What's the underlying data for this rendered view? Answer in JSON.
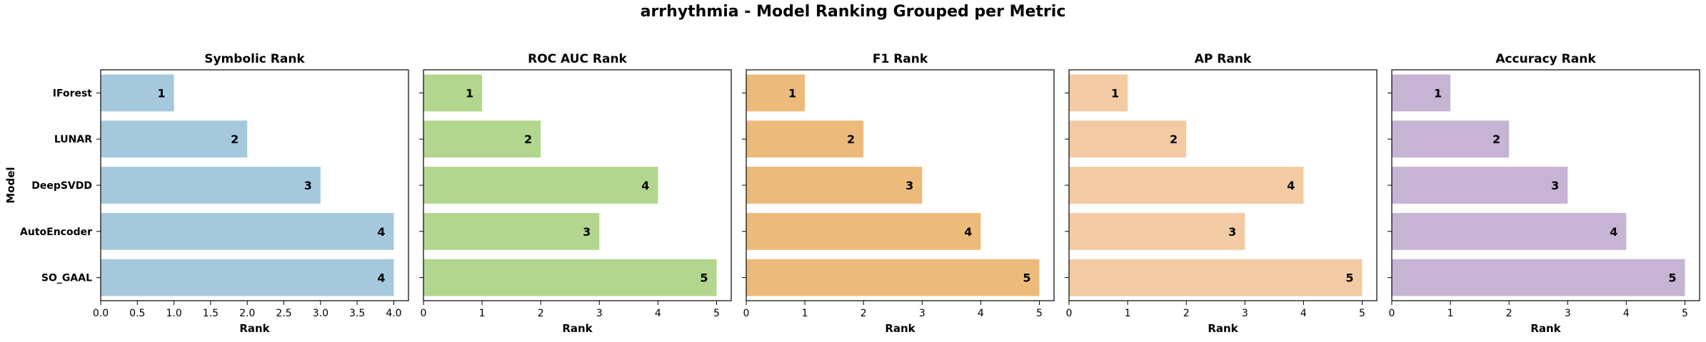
{
  "figure": {
    "title": "arrhythmia - Model Ranking Grouped per Metric",
    "ylabel": "Model"
  },
  "chart_data": [
    {
      "type": "bar",
      "orientation": "horizontal",
      "title": "Symbolic Rank",
      "xlabel": "Rank",
      "categories": [
        "IForest",
        "LUNAR",
        "DeepSVDD",
        "AutoEncoder",
        "SO_GAAL"
      ],
      "values": [
        1,
        2,
        3,
        4,
        4
      ],
      "xlim": [
        0,
        4.2
      ],
      "xticks": [
        0,
        0.5,
        1,
        1.5,
        2,
        2.5,
        3,
        3.5,
        4
      ],
      "tick_labels": [
        "0.0",
        "0.5",
        "1.0",
        "1.5",
        "2.0",
        "2.5",
        "3.0",
        "3.5",
        "4.0"
      ],
      "color": "#a6c8dd"
    },
    {
      "type": "bar",
      "orientation": "horizontal",
      "title": "ROC AUC Rank",
      "xlabel": "Rank",
      "categories": [
        "IForest",
        "LUNAR",
        "DeepSVDD",
        "AutoEncoder",
        "SO_GAAL"
      ],
      "values": [
        1,
        2,
        4,
        3,
        5
      ],
      "xlim": [
        0,
        5.25
      ],
      "xticks": [
        0,
        1,
        2,
        3,
        4,
        5
      ],
      "tick_labels": [
        "0",
        "1",
        "2",
        "3",
        "4",
        "5"
      ],
      "color": "#b2d68e"
    },
    {
      "type": "bar",
      "orientation": "horizontal",
      "title": "F1 Rank",
      "xlabel": "Rank",
      "categories": [
        "IForest",
        "LUNAR",
        "DeepSVDD",
        "AutoEncoder",
        "SO_GAAL"
      ],
      "values": [
        1,
        2,
        3,
        4,
        5
      ],
      "xlim": [
        0,
        5.25
      ],
      "xticks": [
        0,
        1,
        2,
        3,
        4,
        5
      ],
      "tick_labels": [
        "0",
        "1",
        "2",
        "3",
        "4",
        "5"
      ],
      "color": "#ecbb7b"
    },
    {
      "type": "bar",
      "orientation": "horizontal",
      "title": "AP Rank",
      "xlabel": "Rank",
      "categories": [
        "IForest",
        "LUNAR",
        "DeepSVDD",
        "AutoEncoder",
        "SO_GAAL"
      ],
      "values": [
        1,
        2,
        4,
        3,
        5
      ],
      "xlim": [
        0,
        5.25
      ],
      "xticks": [
        0,
        1,
        2,
        3,
        4,
        5
      ],
      "tick_labels": [
        "0",
        "1",
        "2",
        "3",
        "4",
        "5"
      ],
      "color": "#f2cba4"
    },
    {
      "type": "bar",
      "orientation": "horizontal",
      "title": "Accuracy Rank",
      "xlabel": "Rank",
      "categories": [
        "IForest",
        "LUNAR",
        "DeepSVDD",
        "AutoEncoder",
        "SO_GAAL"
      ],
      "values": [
        1,
        2,
        3,
        4,
        5
      ],
      "xlim": [
        0,
        5.25
      ],
      "xticks": [
        0,
        1,
        2,
        3,
        4,
        5
      ],
      "tick_labels": [
        "0",
        "1",
        "2",
        "3",
        "4",
        "5"
      ],
      "color": "#c7b3d3"
    }
  ]
}
